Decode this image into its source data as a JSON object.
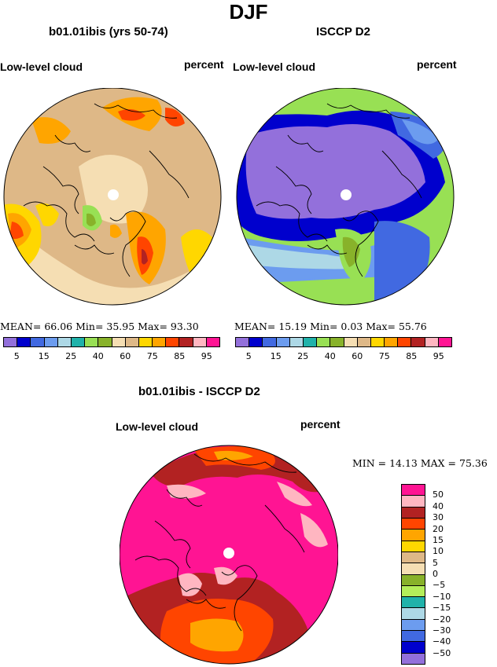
{
  "title": "DJF",
  "left_panel": {
    "title": "b01.01ibis (yrs 50-74)",
    "label": "Low-level cloud",
    "units": "percent",
    "stats": "MEAN=   66.06   Min=   35.95   Max=   93.30"
  },
  "right_panel": {
    "title": "ISCCP D2",
    "label": "Low-level cloud",
    "units": "percent",
    "stats": "MEAN=   15.19   Min=    0.03   Max=   55.76"
  },
  "diff_panel": {
    "title": "b01.01ibis - ISCCP D2",
    "label": "Low-level cloud",
    "units": "percent",
    "stats": "MIN =   14.13  MAX =   75.36"
  },
  "abs_colorbar": {
    "colors": [
      "#9370db",
      "#0000cd",
      "#4169e1",
      "#6c9cef",
      "#add8e6",
      "#20b2aa",
      "#98e054",
      "#88b22a",
      "#f5deb3",
      "#deb887",
      "#ffd700",
      "#ffa500",
      "#ff4500",
      "#b22222",
      "#ffb6c1",
      "#ff1493"
    ],
    "ticks": [
      "5",
      "15",
      "25",
      "40",
      "60",
      "75",
      "85",
      "95"
    ]
  },
  "diff_colorbar": {
    "colors": [
      "#ff1493",
      "#ffb6c1",
      "#b22222",
      "#ff4500",
      "#ffa500",
      "#ffd700",
      "#deb887",
      "#f5deb3",
      "#88b22a",
      "#b4ee5a",
      "#20b2aa",
      "#add8e6",
      "#6c9cef",
      "#4169e1",
      "#0000cd",
      "#9370db"
    ],
    "ticks": [
      "50",
      "40",
      "30",
      "20",
      "15",
      "10",
      "5",
      "0",
      "−5",
      "−10",
      "−15",
      "−20",
      "−30",
      "−40",
      "−50"
    ]
  }
}
